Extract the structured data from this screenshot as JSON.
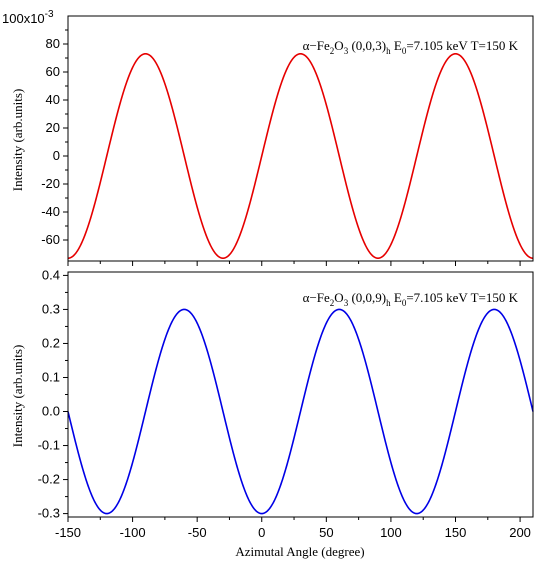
{
  "chart_data": [
    {
      "type": "line",
      "panel": "top",
      "color": "#e60000",
      "xlim": [
        -150,
        210
      ],
      "ylim": [
        -75,
        100
      ],
      "scale_label": {
        "base": "100x10",
        "exponent": "-3"
      },
      "yticks": [
        -60,
        -40,
        -20,
        0,
        20,
        40,
        60,
        80
      ],
      "ytick_labels": [
        "-60",
        "-40",
        "-20",
        "0",
        "20",
        "40",
        "60",
        "80"
      ],
      "ylabel": "Intensity (arb.units)",
      "annotation": {
        "alpha": "α−Fe",
        "sub1": "2",
        "mid1": "O",
        "sub2": "3",
        "reflection": " (0,0,3)",
        "sub3": "h",
        "energy_prefix": " E",
        "sub4": "0",
        "energy_suffix": "=7.105 keV  T=150 K"
      },
      "series": [
        {
          "amplitude": 73,
          "period_deg": 120,
          "phase_deg": -90,
          "x": [
            -150,
            -90,
            -30,
            30,
            90,
            150,
            210
          ],
          "y": [
            -73,
            73,
            -73,
            73,
            -73,
            73,
            -73
          ]
        }
      ]
    },
    {
      "type": "line",
      "panel": "bottom",
      "color": "#0000e6",
      "xlim": [
        -150,
        210
      ],
      "ylim": [
        -0.31,
        0.41
      ],
      "yticks": [
        -0.3,
        -0.2,
        -0.1,
        0.0,
        0.1,
        0.2,
        0.3,
        0.4
      ],
      "ytick_labels": [
        "-0.3",
        "-0.2",
        "-0.1",
        "0.0",
        "0.1",
        "0.2",
        "0.3",
        "0.4"
      ],
      "xticks": [
        -150,
        -100,
        -50,
        0,
        50,
        100,
        150,
        200
      ],
      "xtick_labels": [
        "-150",
        "-100",
        "-50",
        "0",
        "50",
        "100",
        "150",
        "200"
      ],
      "xlabel": "Azimutal Angle (degree)",
      "ylabel": "Intensity (arb.units)",
      "annotation": {
        "alpha": "α−Fe",
        "sub1": "2",
        "mid1": "O",
        "sub2": "3",
        "reflection": " (0,0,9)",
        "sub3": "h",
        "energy_prefix": " E",
        "sub4": "0",
        "energy_suffix": "=7.105 keV  T=150 K"
      },
      "series": [
        {
          "amplitude": 0.3,
          "period_deg": 120,
          "phase_deg": -60,
          "x": [
            -150,
            -120,
            -60,
            0,
            60,
            120,
            180,
            210
          ],
          "y": [
            0.0,
            -0.3,
            0.3,
            -0.3,
            0.3,
            -0.3,
            0.3,
            0.0
          ]
        }
      ]
    }
  ]
}
